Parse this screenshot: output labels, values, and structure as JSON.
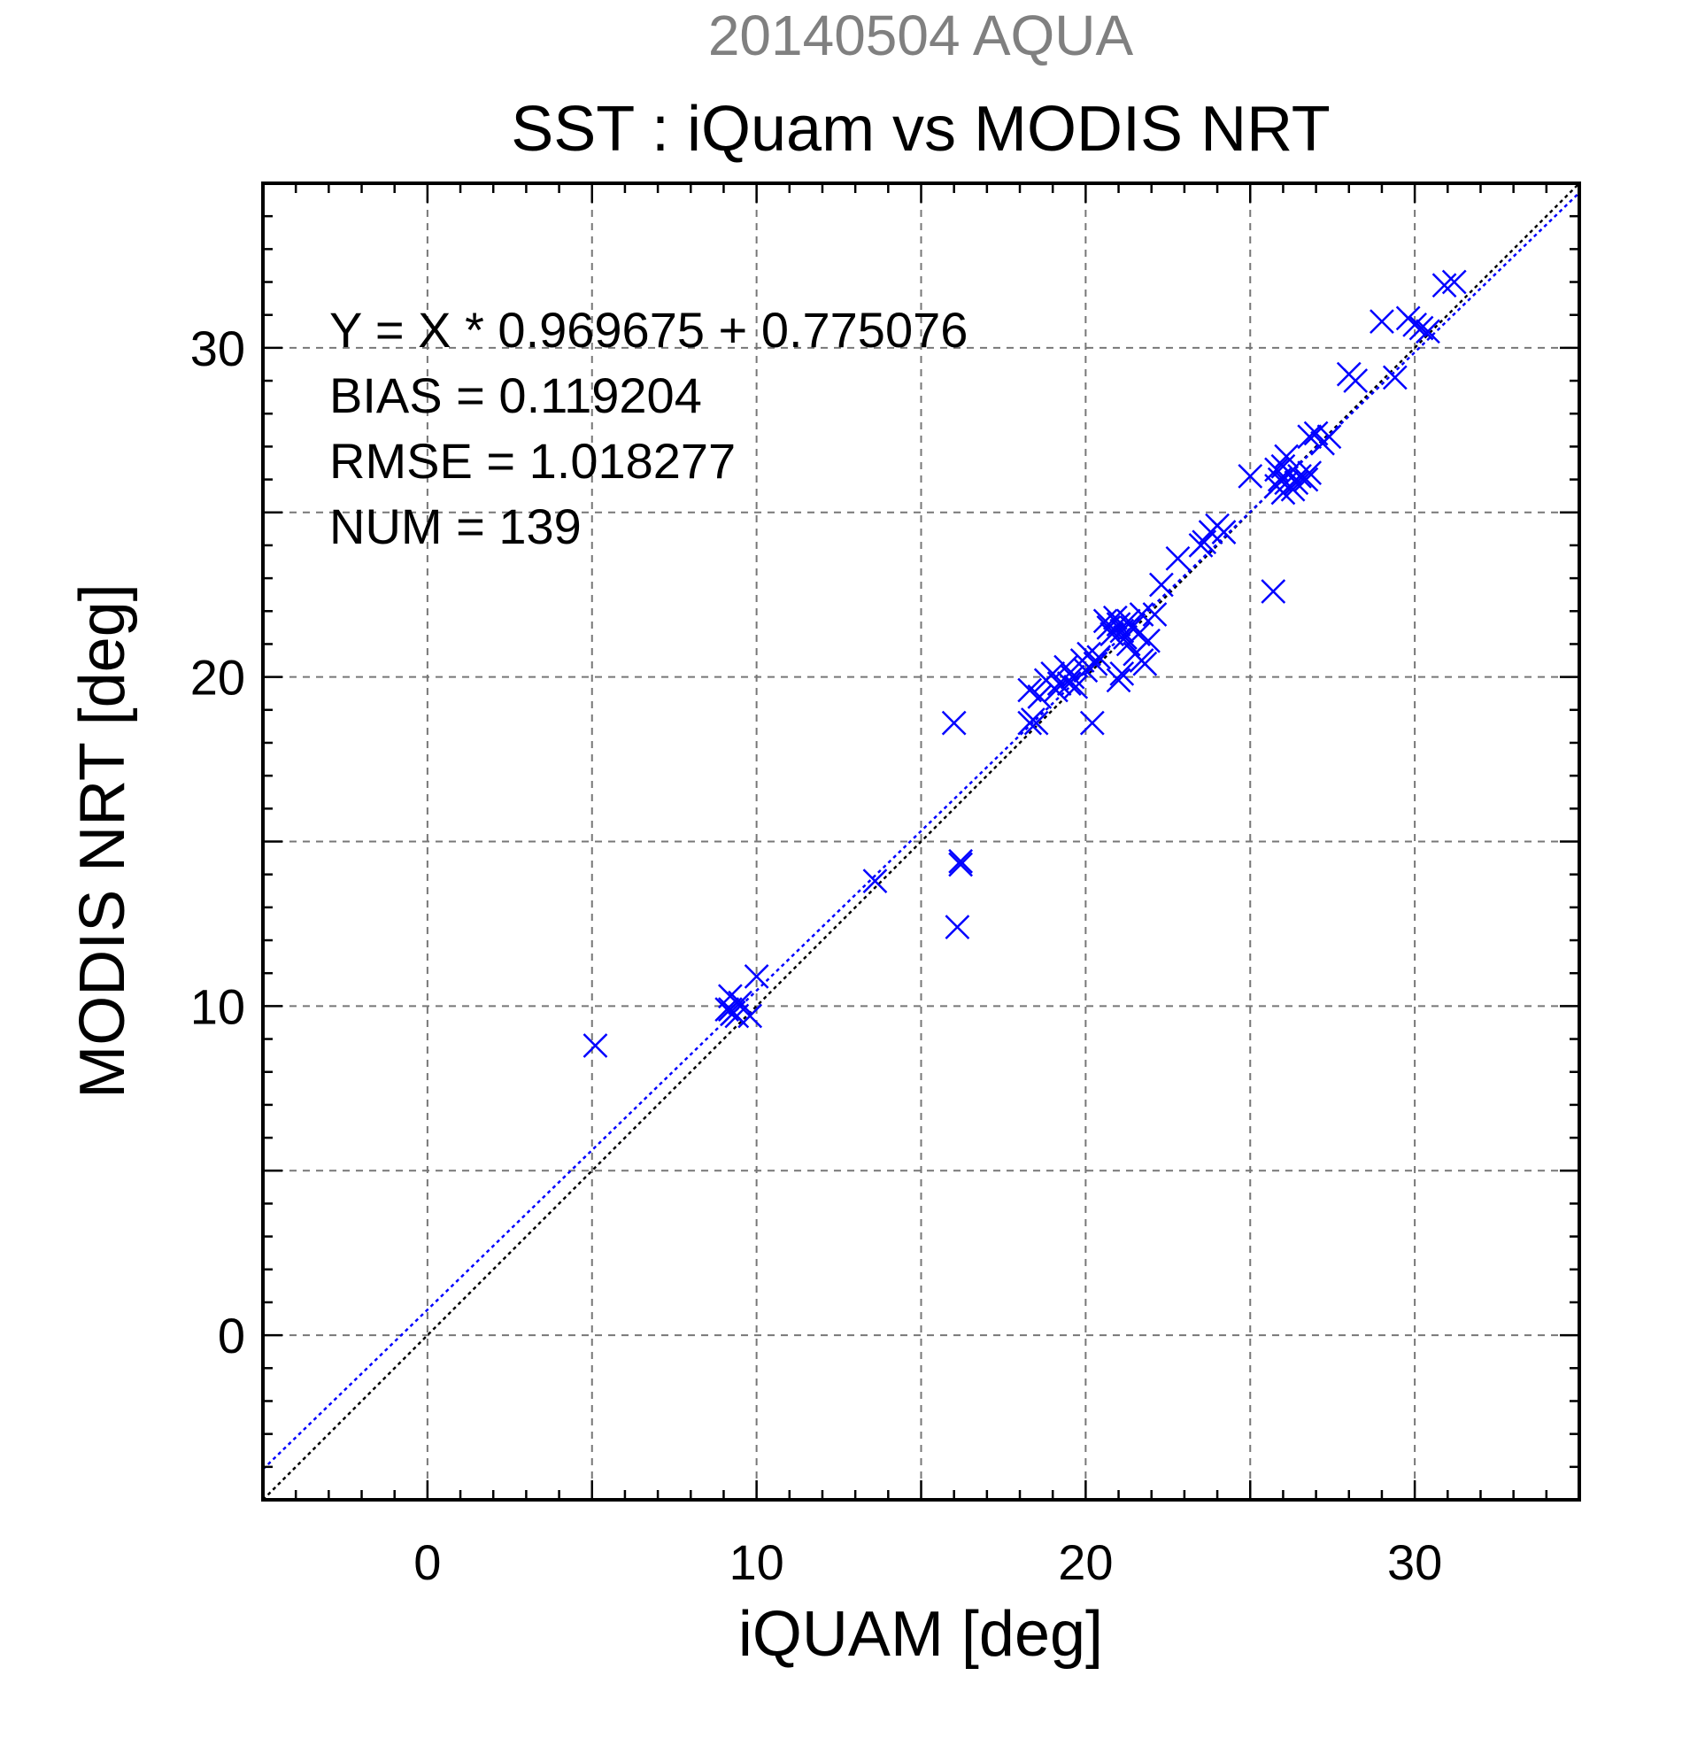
{
  "chart_data": {
    "type": "scatter",
    "title": "20140504 AQUA",
    "subtitle": "SST : iQuam vs MODIS NRT",
    "xlabel": "iQUAM [deg]",
    "ylabel": "MODIS NRT [deg]",
    "xlim": [
      -5,
      35
    ],
    "ylim": [
      -5,
      35
    ],
    "xticks": [
      0,
      10,
      20,
      30
    ],
    "yticks": [
      0,
      10,
      20,
      30
    ],
    "grid": true,
    "stats": [
      "Y = X * 0.969675 + 0.775076",
      "BIAS = 0.119204",
      "RMSE = 1.018277",
      "NUM = 139"
    ],
    "lines": [
      {
        "kind": "one-to-one",
        "slope": 1.0,
        "intercept": 0.0,
        "color": "#000000"
      },
      {
        "kind": "regression",
        "slope": 0.969675,
        "intercept": 0.775076,
        "color": "#0000ff"
      }
    ],
    "marker_color": "#0000ff",
    "title_color": "#808080",
    "points": [
      [
        5.1,
        8.8
      ],
      [
        9.2,
        10.3
      ],
      [
        9.1,
        9.9
      ],
      [
        9.3,
        9.8
      ],
      [
        9.4,
        9.7
      ],
      [
        9.2,
        9.9
      ],
      [
        9.5,
        10.1
      ],
      [
        9.8,
        9.7
      ],
      [
        10.0,
        10.9
      ],
      [
        13.6,
        13.8
      ],
      [
        16.0,
        18.6
      ],
      [
        16.2,
        14.4
      ],
      [
        16.2,
        14.3
      ],
      [
        16.1,
        12.4
      ],
      [
        18.3,
        18.6
      ],
      [
        18.4,
        18.7
      ],
      [
        18.5,
        18.6
      ],
      [
        18.3,
        19.6
      ],
      [
        18.6,
        19.4
      ],
      [
        18.8,
        19.9
      ],
      [
        19.0,
        20.1
      ],
      [
        19.1,
        19.6
      ],
      [
        19.2,
        19.8
      ],
      [
        19.4,
        20.3
      ],
      [
        19.5,
        19.8
      ],
      [
        19.6,
        20.0
      ],
      [
        19.7,
        19.7
      ],
      [
        19.9,
        20.5
      ],
      [
        20.0,
        20.2
      ],
      [
        20.1,
        20.7
      ],
      [
        20.2,
        18.6
      ],
      [
        20.3,
        20.4
      ],
      [
        20.4,
        20.6
      ],
      [
        20.6,
        21.7
      ],
      [
        20.7,
        21.5
      ],
      [
        20.8,
        21.3
      ],
      [
        20.9,
        21.8
      ],
      [
        21.0,
        21.6
      ],
      [
        21.0,
        19.9
      ],
      [
        21.1,
        20.1
      ],
      [
        21.1,
        21.4
      ],
      [
        21.2,
        21.2
      ],
      [
        21.3,
        21.7
      ],
      [
        21.3,
        21.0
      ],
      [
        21.4,
        21.5
      ],
      [
        21.5,
        20.7
      ],
      [
        21.6,
        21.3
      ],
      [
        21.7,
        20.5
      ],
      [
        21.7,
        21.9
      ],
      [
        21.8,
        20.4
      ],
      [
        21.9,
        21.1
      ],
      [
        22.1,
        21.9
      ],
      [
        22.3,
        22.8
      ],
      [
        22.8,
        23.6
      ],
      [
        23.5,
        24.0
      ],
      [
        23.6,
        24.1
      ],
      [
        23.8,
        24.4
      ],
      [
        24.0,
        24.6
      ],
      [
        24.2,
        24.4
      ],
      [
        25.0,
        26.1
      ],
      [
        25.7,
        22.6
      ],
      [
        25.8,
        26.3
      ],
      [
        25.8,
        25.8
      ],
      [
        25.9,
        26.0
      ],
      [
        26.0,
        26.4
      ],
      [
        26.0,
        25.6
      ],
      [
        26.1,
        26.7
      ],
      [
        26.1,
        25.9
      ],
      [
        26.2,
        26.2
      ],
      [
        26.3,
        25.7
      ],
      [
        26.4,
        25.9
      ],
      [
        26.5,
        26.1
      ],
      [
        26.7,
        26.0
      ],
      [
        26.8,
        26.2
      ],
      [
        26.8,
        27.3
      ],
      [
        27.0,
        27.4
      ],
      [
        27.2,
        27.1
      ],
      [
        27.4,
        27.3
      ],
      [
        28.0,
        29.2
      ],
      [
        28.2,
        29.0
      ],
      [
        29.0,
        30.8
      ],
      [
        29.4,
        29.1
      ],
      [
        29.8,
        30.9
      ],
      [
        30.0,
        30.7
      ],
      [
        30.2,
        30.6
      ],
      [
        30.4,
        30.5
      ],
      [
        30.9,
        31.9
      ],
      [
        31.2,
        32.0
      ]
    ]
  }
}
